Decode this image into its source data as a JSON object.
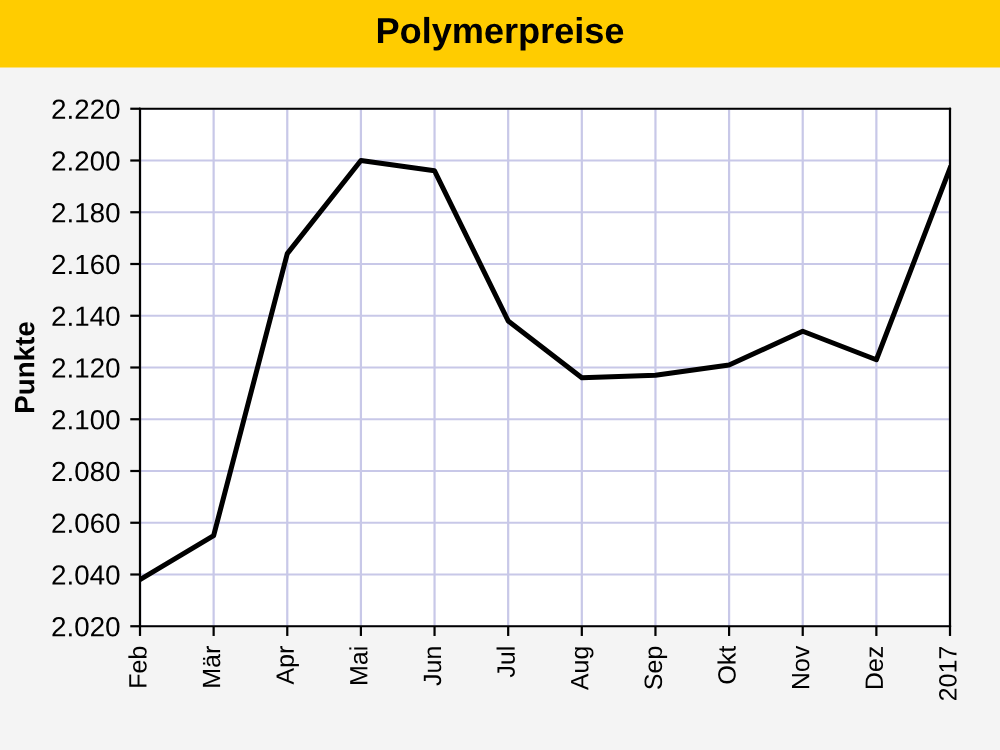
{
  "chart_data": {
    "type": "line",
    "title": "Polymerpreise",
    "ylabel": "Punkte",
    "categories": [
      "Feb",
      "Mär",
      "Apr",
      "Mai",
      "Jun",
      "Jul",
      "Aug",
      "Sep",
      "Okt",
      "Nov",
      "Dez",
      "2017"
    ],
    "series": [
      {
        "color": "#000000",
        "values": [
          2.038,
          2.055,
          2.164,
          2.2,
          2.196,
          2.138,
          2.116,
          2.117,
          2.121,
          2.134,
          2.123,
          2.197
        ]
      }
    ],
    "ylim": [
      2.02,
      2.22
    ],
    "yticks": [
      {
        "value": 2.02,
        "label": "2.020"
      },
      {
        "value": 2.04,
        "label": "2.040"
      },
      {
        "value": 2.06,
        "label": "2.060"
      },
      {
        "value": 2.08,
        "label": "2.080"
      },
      {
        "value": 2.1,
        "label": "2.100"
      },
      {
        "value": 2.12,
        "label": "2.120"
      },
      {
        "value": 2.14,
        "label": "2.140"
      },
      {
        "value": 2.16,
        "label": "2.160"
      },
      {
        "value": 2.18,
        "label": "2.180"
      },
      {
        "value": 2.2,
        "label": "2.200"
      },
      {
        "value": 2.22,
        "label": "2.220"
      }
    ],
    "grid": true,
    "marker": "none",
    "line_style": "solid"
  }
}
